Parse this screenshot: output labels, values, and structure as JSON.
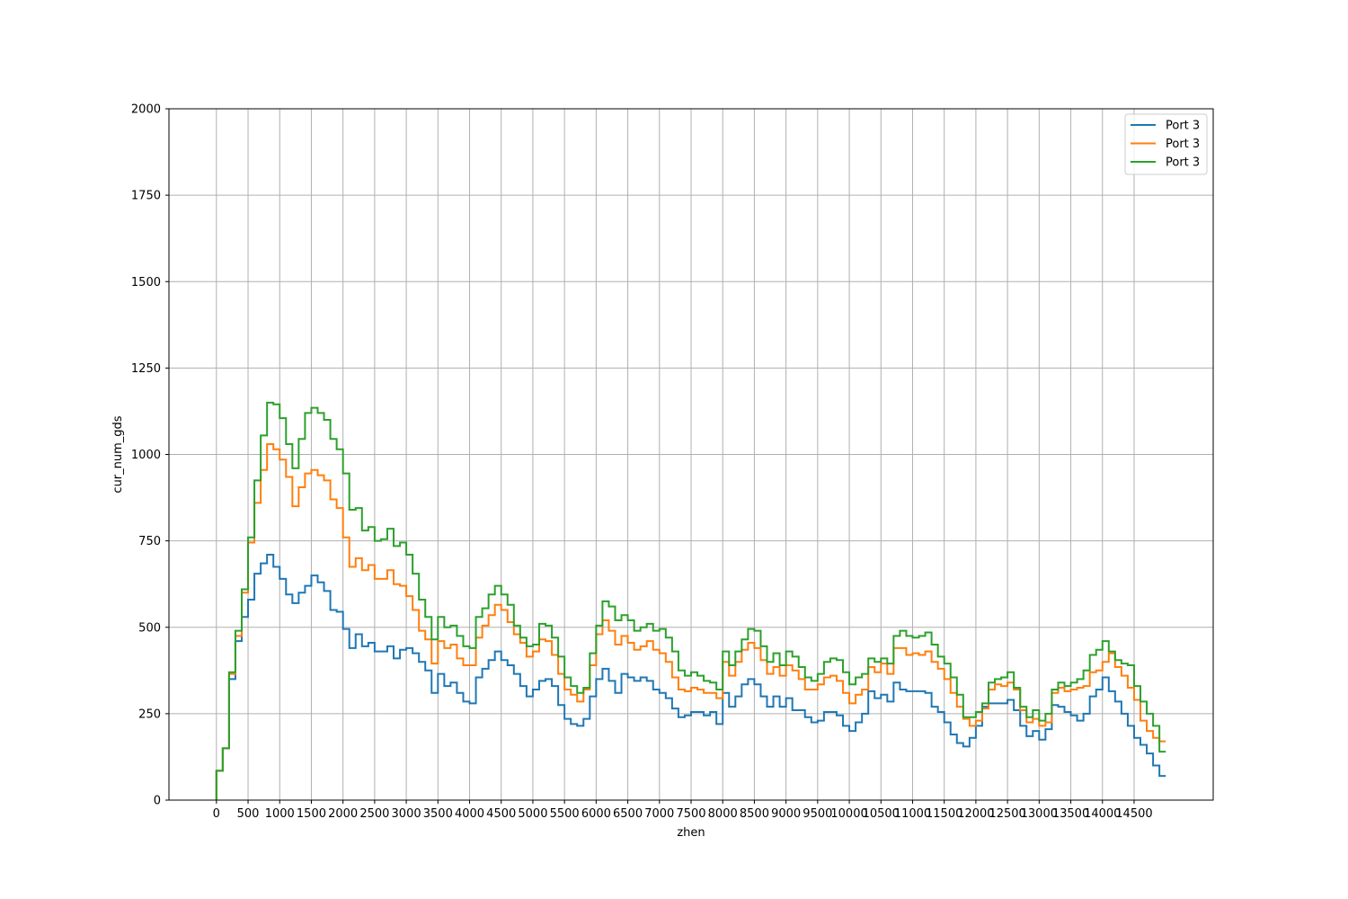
{
  "chart_data": {
    "type": "line",
    "drawstyle": "steps",
    "title": "",
    "xlabel": "zhen",
    "ylabel": "cur_num_gds",
    "xlim": [
      -750,
      15750
    ],
    "ylim": [
      0,
      2000
    ],
    "grid": true,
    "legend_position": "top-right",
    "x_ticks": [
      0,
      500,
      1000,
      1500,
      2000,
      2500,
      3000,
      3500,
      4000,
      4500,
      5000,
      5500,
      6000,
      6500,
      7000,
      7500,
      8000,
      8500,
      9000,
      9500,
      10000,
      10500,
      11000,
      11500,
      12000,
      12500,
      13000,
      13500,
      14000,
      14500
    ],
    "x_tick_labels": [
      "0",
      "500",
      "1000",
      "1500",
      "2000",
      "2500",
      "3000",
      "3500",
      "4000",
      "4500",
      "5000",
      "5500",
      "6000",
      "6500",
      "7000",
      "7500",
      "8000",
      "8500",
      "9000",
      "9500",
      "10000",
      "10500",
      "11000",
      "11500",
      "12000",
      "12500",
      "13000",
      "13500",
      "14000",
      "14500"
    ],
    "y_ticks": [
      0,
      250,
      500,
      750,
      1000,
      1250,
      1500,
      1750,
      2000
    ],
    "y_tick_labels": [
      "0",
      "250",
      "500",
      "750",
      "1000",
      "1250",
      "1500",
      "1750",
      "2000"
    ],
    "x": [
      0,
      100,
      200,
      300,
      400,
      500,
      600,
      700,
      800,
      900,
      1000,
      1100,
      1200,
      1300,
      1400,
      1500,
      1600,
      1700,
      1800,
      1900,
      2000,
      2100,
      2200,
      2300,
      2400,
      2500,
      2600,
      2700,
      2800,
      2900,
      3000,
      3100,
      3200,
      3300,
      3400,
      3500,
      3600,
      3700,
      3800,
      3900,
      4000,
      4100,
      4200,
      4300,
      4400,
      4500,
      4600,
      4700,
      4800,
      4900,
      5000,
      5100,
      5200,
      5300,
      5400,
      5500,
      5600,
      5700,
      5800,
      5900,
      6000,
      6100,
      6200,
      6300,
      6400,
      6500,
      6600,
      6700,
      6800,
      6900,
      7000,
      7100,
      7200,
      7300,
      7400,
      7500,
      7600,
      7700,
      7800,
      7900,
      8000,
      8100,
      8200,
      8300,
      8400,
      8500,
      8600,
      8700,
      8800,
      8900,
      9000,
      9100,
      9200,
      9300,
      9400,
      9500,
      9600,
      9700,
      9800,
      9900,
      10000,
      10100,
      10200,
      10300,
      10400,
      10500,
      10600,
      10700,
      10800,
      10900,
      11000,
      11100,
      11200,
      11300,
      11400,
      11500,
      11600,
      11700,
      11800,
      11900,
      12000,
      12100,
      12200,
      12300,
      12400,
      12500,
      12600,
      12700,
      12800,
      12900,
      13000,
      13100,
      13200,
      13300,
      13400,
      13500,
      13600,
      13700,
      13800,
      13900,
      14000,
      14100,
      14200,
      14300,
      14400,
      14500,
      14600,
      14700,
      14800,
      14900,
      15000
    ],
    "series": [
      {
        "name": "Port 3",
        "color": "#1f77b4",
        "values": [
          0,
          85,
          150,
          350,
          460,
          530,
          580,
          655,
          685,
          710,
          675,
          640,
          595,
          570,
          600,
          620,
          650,
          630,
          605,
          550,
          545,
          495,
          440,
          480,
          445,
          455,
          430,
          430,
          445,
          410,
          435,
          440,
          425,
          400,
          375,
          310,
          365,
          330,
          340,
          310,
          285,
          280,
          355,
          380,
          405,
          430,
          405,
          390,
          365,
          330,
          300,
          320,
          345,
          350,
          330,
          275,
          235,
          220,
          215,
          235,
          300,
          350,
          380,
          345,
          310,
          365,
          355,
          345,
          355,
          345,
          320,
          310,
          295,
          265,
          240,
          245,
          255,
          255,
          245,
          255,
          220,
          310,
          270,
          300,
          335,
          350,
          335,
          300,
          270,
          300,
          270,
          295,
          260,
          260,
          240,
          225,
          230,
          255,
          255,
          245,
          215,
          200,
          225,
          250,
          315,
          295,
          305,
          285,
          340,
          320,
          315,
          315,
          315,
          310,
          270,
          255,
          225,
          190,
          165,
          155,
          180,
          215,
          270,
          280,
          280,
          280,
          290,
          260,
          215,
          185,
          200,
          175,
          205,
          275,
          270,
          255,
          245,
          230,
          250,
          300,
          320,
          355,
          315,
          285,
          250,
          215,
          180,
          160,
          135,
          100,
          70
        ]
      },
      {
        "name": "Port 3",
        "color": "#ff7f0e",
        "values": [
          0,
          85,
          150,
          365,
          475,
          600,
          745,
          860,
          955,
          1030,
          1015,
          985,
          935,
          850,
          905,
          945,
          955,
          940,
          925,
          870,
          845,
          760,
          675,
          700,
          665,
          680,
          640,
          640,
          665,
          625,
          620,
          590,
          550,
          490,
          465,
          395,
          460,
          440,
          450,
          410,
          390,
          390,
          470,
          505,
          535,
          565,
          550,
          515,
          480,
          455,
          415,
          430,
          465,
          460,
          420,
          365,
          320,
          305,
          285,
          320,
          390,
          480,
          520,
          490,
          450,
          475,
          455,
          435,
          445,
          460,
          435,
          425,
          400,
          355,
          320,
          315,
          325,
          320,
          310,
          310,
          295,
          400,
          360,
          400,
          435,
          455,
          440,
          405,
          365,
          385,
          360,
          390,
          375,
          350,
          320,
          320,
          335,
          355,
          360,
          345,
          310,
          280,
          305,
          320,
          385,
          370,
          395,
          365,
          440,
          440,
          420,
          425,
          420,
          430,
          400,
          380,
          350,
          310,
          270,
          235,
          215,
          230,
          265,
          320,
          335,
          330,
          340,
          320,
          260,
          225,
          235,
          215,
          225,
          310,
          325,
          315,
          320,
          325,
          330,
          370,
          375,
          400,
          425,
          385,
          360,
          325,
          290,
          230,
          200,
          180,
          170
        ]
      },
      {
        "name": "Port 3",
        "color": "#2ca02c",
        "values": [
          0,
          85,
          150,
          370,
          490,
          610,
          760,
          925,
          1055,
          1150,
          1145,
          1105,
          1030,
          960,
          1045,
          1120,
          1135,
          1120,
          1100,
          1045,
          1015,
          945,
          840,
          845,
          780,
          790,
          750,
          755,
          785,
          735,
          745,
          710,
          655,
          580,
          530,
          465,
          530,
          500,
          505,
          475,
          445,
          440,
          530,
          555,
          595,
          620,
          595,
          565,
          505,
          470,
          445,
          450,
          510,
          505,
          470,
          415,
          355,
          330,
          310,
          325,
          425,
          505,
          575,
          560,
          520,
          535,
          520,
          490,
          500,
          510,
          490,
          495,
          470,
          430,
          375,
          360,
          370,
          360,
          345,
          340,
          320,
          430,
          390,
          430,
          465,
          495,
          490,
          445,
          400,
          425,
          390,
          430,
          415,
          385,
          355,
          345,
          365,
          400,
          410,
          405,
          370,
          335,
          355,
          365,
          410,
          400,
          410,
          395,
          475,
          490,
          475,
          470,
          475,
          485,
          450,
          415,
          395,
          355,
          305,
          240,
          240,
          255,
          280,
          340,
          350,
          355,
          370,
          325,
          270,
          240,
          260,
          230,
          250,
          320,
          340,
          330,
          340,
          350,
          375,
          420,
          435,
          460,
          430,
          405,
          395,
          390,
          330,
          285,
          250,
          215,
          140
        ]
      }
    ]
  }
}
